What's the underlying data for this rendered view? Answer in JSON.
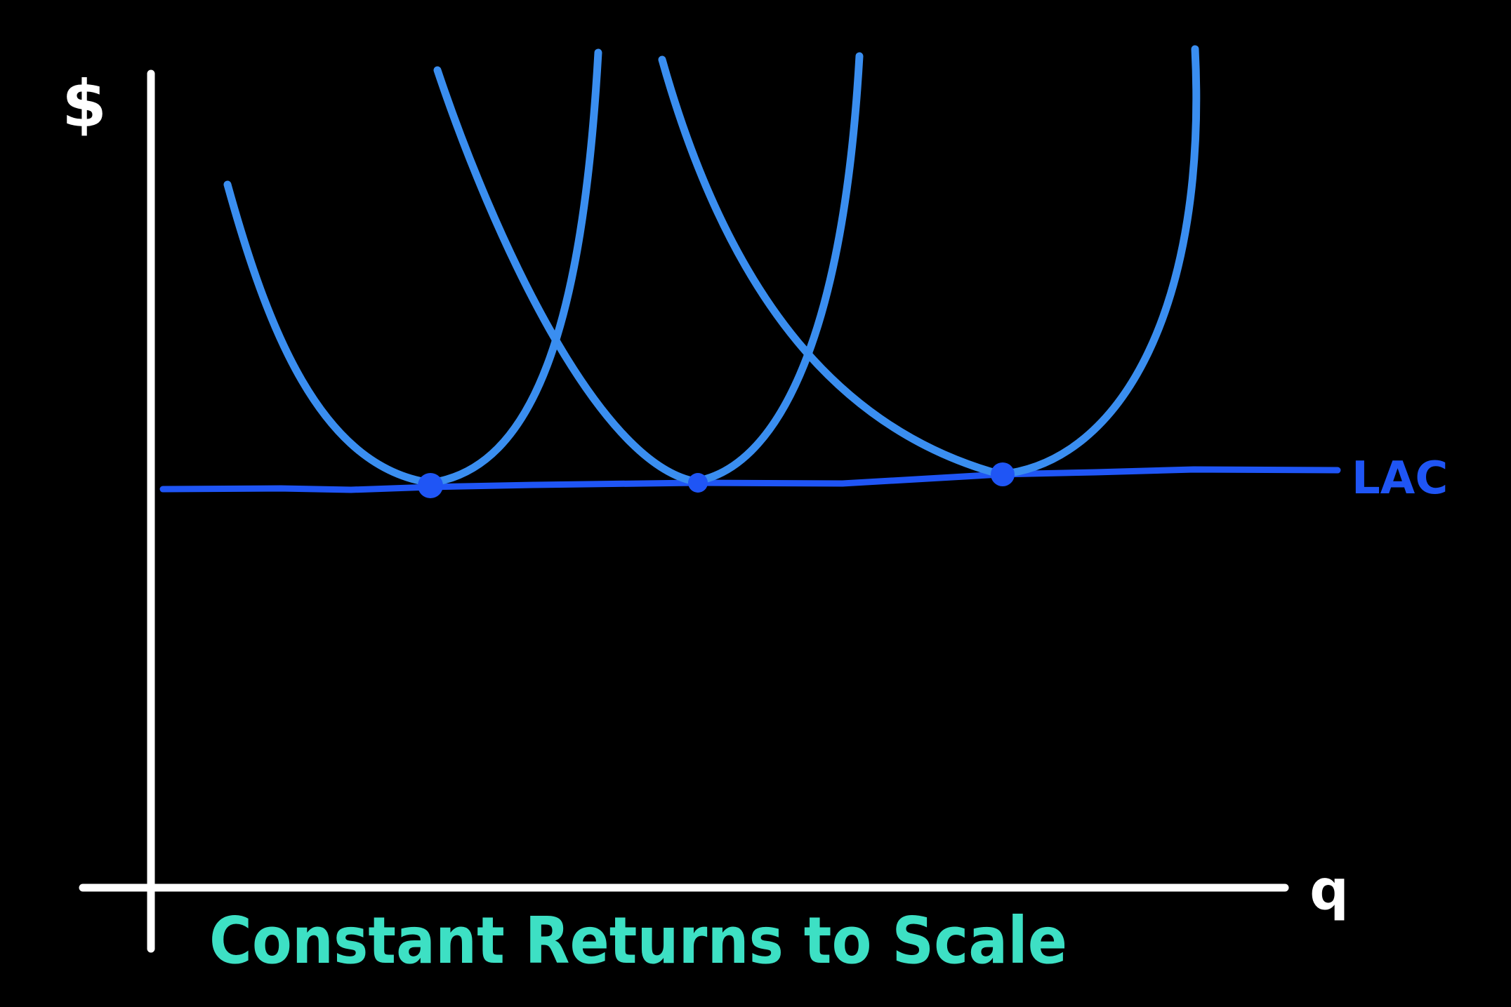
{
  "labels": {
    "y_axis": "$",
    "x_axis": "q",
    "lac": "LAC",
    "caption": "Constant Returns to Scale"
  },
  "colors": {
    "background": "#000000",
    "axes": "#ffffff",
    "sac_curves": "#3a8ef0",
    "lac_curve": "#1f55f5",
    "tangency_points": "#1f55f5",
    "caption": "#3de0c4"
  },
  "curves": {
    "sac_count": 3,
    "tangency_point_count": 3
  }
}
